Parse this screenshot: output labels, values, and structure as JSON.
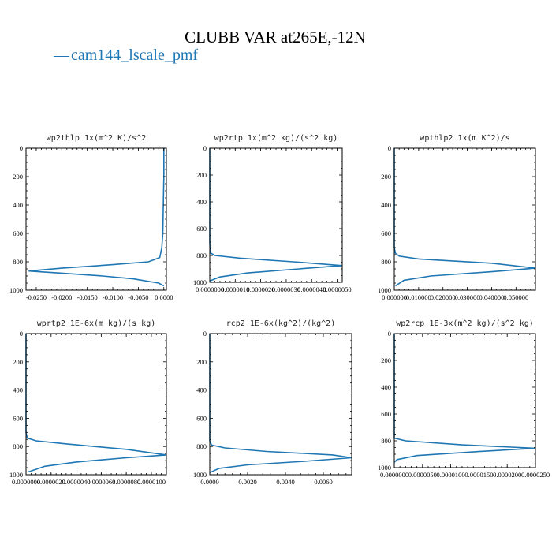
{
  "figure": {
    "title": "CLUBB VAR at265E,-12N",
    "legend": {
      "label": "cam144_lscale_pmf",
      "marker": "—",
      "color": "#1f77b4"
    }
  },
  "chart_data": [
    {
      "type": "line",
      "title": "wp2thlp   1x(m^2 K)/s^2",
      "xlim": [
        -0.027,
        0.0005
      ],
      "ylim": [
        1000,
        0
      ],
      "y_inverted": true,
      "xticks": [
        -0.025,
        -0.02,
        -0.015,
        -0.01,
        -0.005,
        0.0
      ],
      "xtick_labels": [
        "-0.0250",
        "-0.0200",
        "-0.0150",
        "-0.0100",
        "-0.0050",
        "0.0000"
      ],
      "yticks": [
        0,
        200,
        400,
        600,
        800,
        1000
      ],
      "ytick_labels": [
        "0",
        "200",
        "400",
        "600",
        "800",
        "1000"
      ],
      "series": [
        {
          "color": "#1f77b4",
          "x": [
            0.0,
            0.0,
            -0.0001,
            -0.0002,
            -0.0004,
            -0.0008,
            -0.003,
            -0.01,
            -0.02,
            -0.0265,
            -0.02,
            -0.012,
            -0.006,
            -0.001,
            0.0
          ],
          "y": [
            0,
            200,
            400,
            600,
            700,
            770,
            800,
            820,
            845,
            865,
            880,
            900,
            920,
            950,
            970
          ]
        }
      ]
    },
    {
      "type": "line",
      "title": "wp2rtp   1x(m^2 kg)/(s^2 kg)",
      "xlim": [
        0.0,
        5.2e-06
      ],
      "ylim": [
        1000,
        0
      ],
      "y_inverted": true,
      "xticks": [
        0.0,
        1e-06,
        2e-06,
        3e-06,
        4e-06,
        5e-06
      ],
      "xtick_labels": [
        "0.0000000",
        "0.0000010",
        "0.0000020",
        "0.0000030",
        "0.0000040",
        "0.0000050"
      ],
      "yticks": [
        0,
        200,
        400,
        600,
        800,
        1000
      ],
      "ytick_labels": [
        "0",
        "200",
        "400",
        "600",
        "800",
        "1000"
      ],
      "series": [
        {
          "color": "#1f77b4",
          "x": [
            0.0,
            0.0,
            2e-08,
            2e-07,
            1.2e-06,
            3.5e-06,
            5.2e-06,
            3.5e-06,
            1.5e-06,
            4e-07,
            0.0
          ],
          "y": [
            0,
            700,
            780,
            800,
            820,
            850,
            875,
            900,
            930,
            960,
            990
          ]
        }
      ]
    },
    {
      "type": "line",
      "title": "wpthlp2   1x(m K^2)/s",
      "xlim": [
        0.0,
        0.058
      ],
      "ylim": [
        1000,
        0
      ],
      "y_inverted": true,
      "xticks": [
        0.0,
        0.01,
        0.02,
        0.03,
        0.04,
        0.05
      ],
      "xtick_labels": [
        "0.000000",
        "0.010000",
        "0.020000",
        "0.030000",
        "0.040000",
        "0.050000"
      ],
      "yticks": [
        0,
        200,
        400,
        600,
        800,
        1000
      ],
      "ytick_labels": [
        "0",
        "200",
        "400",
        "600",
        "800",
        "1000"
      ],
      "series": [
        {
          "color": "#1f77b4",
          "x": [
            0.0,
            0.0,
            0.0005,
            0.002,
            0.01,
            0.04,
            0.058,
            0.04,
            0.015,
            0.004,
            0.0005
          ],
          "y": [
            0,
            700,
            740,
            760,
            780,
            810,
            845,
            870,
            900,
            930,
            970
          ]
        }
      ]
    },
    {
      "type": "line",
      "title": "wprtp2   1E-6x(m kg)/(s kg)",
      "xlim": [
        0.0,
        1.12e-05
      ],
      "ylim": [
        1000,
        0
      ],
      "y_inverted": true,
      "xticks": [
        0.0,
        2e-06,
        4e-06,
        6e-06,
        8e-06,
        1e-05
      ],
      "xtick_labels": [
        "0.0000000",
        "0.0000020",
        "0.0000040",
        "0.0000060",
        "0.0000080",
        "0.0000100"
      ],
      "yticks": [
        0,
        200,
        400,
        600,
        800,
        1000
      ],
      "ytick_labels": [
        "0",
        "200",
        "400",
        "600",
        "800",
        "1000"
      ],
      "series": [
        {
          "color": "#1f77b4",
          "x": [
            0.0,
            0.0,
            1e-07,
            8e-07,
            3e-06,
            8e-06,
            1.12e-05,
            8e-06,
            4e-06,
            1.5e-06,
            2e-07
          ],
          "y": [
            0,
            700,
            740,
            760,
            780,
            820,
            860,
            880,
            910,
            940,
            980
          ]
        }
      ]
    },
    {
      "type": "line",
      "title": "rcp2   1E-6x(kg^2)/(kg^2)",
      "xlim": [
        0.0,
        0.0075
      ],
      "ylim": [
        1000,
        0
      ],
      "y_inverted": true,
      "xticks": [
        0.0,
        0.002,
        0.004,
        0.006
      ],
      "xtick_labels": [
        "0.0000",
        "0.0020",
        "0.0040",
        "0.0060"
      ],
      "yticks": [
        0,
        200,
        400,
        600,
        800,
        1000
      ],
      "ytick_labels": [
        "0",
        "200",
        "400",
        "600",
        "800",
        "1000"
      ],
      "series": [
        {
          "color": "#1f77b4",
          "x": [
            0.0,
            0.0,
            0.0001,
            0.0008,
            0.003,
            0.0065,
            0.0075,
            0.005,
            0.002,
            0.0005,
            0.0
          ],
          "y": [
            0,
            760,
            790,
            810,
            835,
            860,
            880,
            905,
            930,
            955,
            985
          ]
        }
      ]
    },
    {
      "type": "line",
      "title": "wp2rcp   1E-3x(m^2 kg)/(s^2 kg)",
      "xlim": [
        0.0,
        2.5e-05
      ],
      "ylim": [
        1000,
        0
      ],
      "y_inverted": true,
      "xticks": [
        0.0,
        5e-06,
        1e-05,
        1.5e-05,
        2e-05,
        2.5e-05
      ],
      "xtick_labels": [
        "0.0000000",
        "0.0000050",
        "0.0000100",
        "0.0000150",
        "0.0000200",
        "0.0000250"
      ],
      "yticks": [
        0,
        200,
        400,
        600,
        800,
        1000
      ],
      "ytick_labels": [
        "0",
        "200",
        "400",
        "600",
        "800",
        "1000"
      ],
      "series": [
        {
          "color": "#1f77b4",
          "x": [
            0.0,
            0.0,
            2e-06,
            1.2e-05,
            2.5e-05,
            1.5e-05,
            4e-06,
            5e-07,
            0.0
          ],
          "y": [
            0,
            780,
            800,
            830,
            855,
            880,
            910,
            940,
            960
          ]
        }
      ]
    }
  ]
}
